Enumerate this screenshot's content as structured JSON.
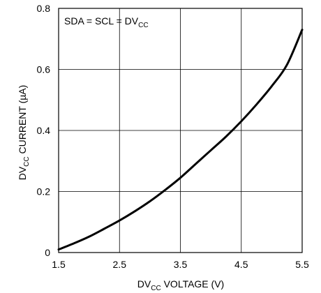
{
  "chart_data": {
    "type": "line",
    "title": "",
    "annotation": {
      "main": "SDA = SCL = DV",
      "sub": "CC"
    },
    "xlabel": {
      "prefix": "DV",
      "sub": "CC",
      "suffix": " VOLTAGE (V)"
    },
    "ylabel": {
      "prefix": "DV",
      "sub": "CC",
      "suffix": " CURRENT (µA)"
    },
    "xlim": [
      1.5,
      5.5
    ],
    "ylim": [
      0,
      0.8
    ],
    "xticks": [
      "1.5",
      "2.5",
      "3.5",
      "4.5",
      "5.5"
    ],
    "yticks": [
      "0",
      "0.2",
      "0.4",
      "0.6",
      "0.8"
    ],
    "grid": true,
    "series": [
      {
        "x": [
          1.5,
          1.75,
          2.0,
          2.25,
          2.5,
          2.75,
          3.0,
          3.25,
          3.5,
          3.75,
          4.0,
          4.25,
          4.5,
          4.75,
          5.0,
          5.25,
          5.5
        ],
        "y": [
          0.01,
          0.03,
          0.052,
          0.078,
          0.105,
          0.135,
          0.168,
          0.205,
          0.245,
          0.29,
          0.335,
          0.38,
          0.43,
          0.485,
          0.545,
          0.615,
          0.73
        ]
      }
    ]
  }
}
